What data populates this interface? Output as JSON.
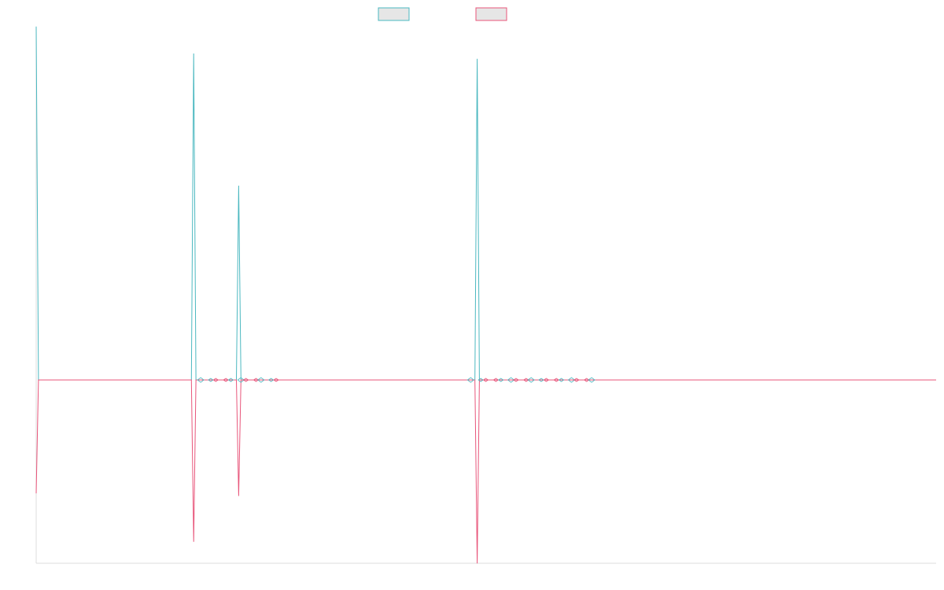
{
  "chart_data": {
    "type": "line",
    "title": "",
    "xlabel": "",
    "ylabel": "",
    "grid": false,
    "legend": {
      "placement": "top-center",
      "entries": [
        "",
        ""
      ]
    },
    "xlim": [
      0,
      200
    ],
    "ylim": [
      -1.0,
      1.0
    ],
    "series": [
      {
        "color": "#4bb8c0",
        "points": [
          [
            0,
            1.31
          ],
          [
            0.5,
            0.0
          ],
          [
            1,
            0.0
          ],
          [
            34.5,
            0.0
          ],
          [
            35,
            1.21
          ],
          [
            35.5,
            0.0
          ],
          [
            36,
            0.0
          ],
          [
            44.5,
            0.0
          ],
          [
            45,
            0.72
          ],
          [
            45.5,
            0.0
          ],
          [
            46,
            0.0
          ],
          [
            97.5,
            0.0
          ],
          [
            98,
            1.19
          ],
          [
            98.5,
            0.0
          ],
          [
            99,
            0.0
          ],
          [
            200,
            0.0
          ]
        ]
      },
      {
        "color": "#e8557a",
        "points": [
          [
            0,
            -0.42
          ],
          [
            0.5,
            0.0
          ],
          [
            1,
            0.0
          ],
          [
            34.5,
            0.0
          ],
          [
            35,
            -0.6
          ],
          [
            35.5,
            0.0
          ],
          [
            36,
            0.0
          ],
          [
            44.5,
            0.0
          ],
          [
            45,
            -0.43
          ],
          [
            45.5,
            0.0
          ],
          [
            46,
            0.0
          ],
          [
            97.5,
            0.0
          ],
          [
            98,
            -0.68
          ],
          [
            98.5,
            0.0
          ],
          [
            99,
            0.0
          ],
          [
            200,
            0.0
          ]
        ]
      }
    ],
    "small_features": [
      {
        "x_start": 36,
        "x_end": 55
      },
      {
        "x_start": 96,
        "x_end": 124
      }
    ]
  }
}
